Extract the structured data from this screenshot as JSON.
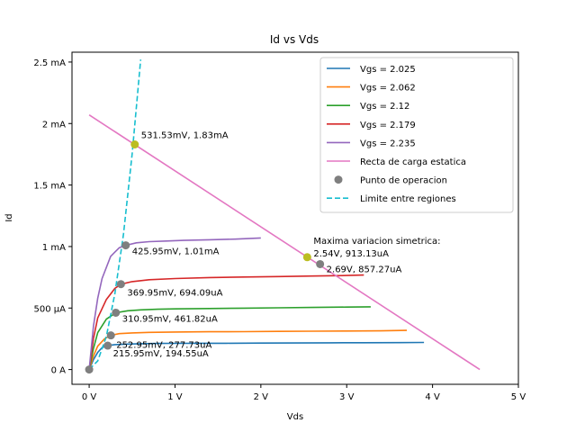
{
  "chart_data": {
    "type": "line",
    "title": "Id vs Vds",
    "xlabel": "Vds",
    "ylabel": "Id",
    "xlim": [
      -0.2,
      5.0
    ],
    "ylim": [
      -0.12,
      2.58
    ],
    "x_ticks": [
      {
        "value": 0,
        "label": "0 V"
      },
      {
        "value": 1,
        "label": "1 V"
      },
      {
        "value": 2,
        "label": "2 V"
      },
      {
        "value": 3,
        "label": "3 V"
      },
      {
        "value": 4,
        "label": "4 V"
      },
      {
        "value": 5,
        "label": "5 V"
      }
    ],
    "y_ticks": [
      {
        "value": 0,
        "label": "0 A"
      },
      {
        "value": 0.5,
        "label": "500 µA"
      },
      {
        "value": 1.0,
        "label": "1 mA"
      },
      {
        "value": 1.5,
        "label": "1.5 mA"
      },
      {
        "value": 2.0,
        "label": "2 mA"
      },
      {
        "value": 2.5,
        "label": "2.5 mA"
      }
    ],
    "grid": false,
    "legend_position": "top-right",
    "series": [
      {
        "name": "Vgs = 2.025",
        "color": "#1f77b4",
        "style": "solid",
        "x": [
          0,
          0.05,
          0.1,
          0.15,
          0.216,
          0.3,
          0.45,
          0.6,
          0.8,
          1.0,
          1.3,
          1.6,
          2.0,
          2.4,
          2.8,
          3.2,
          3.6,
          3.9
        ],
        "y": [
          0,
          0.08,
          0.14,
          0.178,
          0.195,
          0.203,
          0.207,
          0.21,
          0.212,
          0.213,
          0.214,
          0.214,
          0.215,
          0.216,
          0.217,
          0.218,
          0.219,
          0.22
        ]
      },
      {
        "name": "Vgs = 2.062",
        "color": "#ff7f0e",
        "style": "solid",
        "x": [
          0,
          0.05,
          0.1,
          0.18,
          0.253,
          0.35,
          0.5,
          0.7,
          1.0,
          1.4,
          1.8,
          2.2,
          2.6,
          3.0,
          3.4,
          3.7
        ],
        "y": [
          0,
          0.11,
          0.19,
          0.25,
          0.278,
          0.292,
          0.298,
          0.302,
          0.305,
          0.307,
          0.308,
          0.31,
          0.312,
          0.313,
          0.315,
          0.318
        ]
      },
      {
        "name": "Vgs = 2.12",
        "color": "#2ca02c",
        "style": "solid",
        "x": [
          0,
          0.05,
          0.1,
          0.2,
          0.311,
          0.45,
          0.6,
          0.8,
          1.0,
          1.4,
          1.8,
          2.2,
          2.6,
          3.0,
          3.28
        ],
        "y": [
          0,
          0.17,
          0.3,
          0.41,
          0.462,
          0.478,
          0.485,
          0.49,
          0.493,
          0.496,
          0.499,
          0.502,
          0.505,
          0.508,
          0.51
        ]
      },
      {
        "name": "Vgs = 2.179",
        "color": "#d62728",
        "style": "solid",
        "x": [
          0,
          0.05,
          0.1,
          0.2,
          0.3,
          0.37,
          0.5,
          0.7,
          1.0,
          1.4,
          1.8,
          2.2,
          2.6,
          3.0,
          3.2
        ],
        "y": [
          0,
          0.25,
          0.42,
          0.57,
          0.66,
          0.694,
          0.715,
          0.73,
          0.74,
          0.748,
          0.752,
          0.756,
          0.76,
          0.765,
          0.768
        ]
      },
      {
        "name": "Vgs = 2.235",
        "color": "#9467bd",
        "style": "solid",
        "x": [
          0,
          0.05,
          0.1,
          0.15,
          0.25,
          0.35,
          0.426,
          0.55,
          0.7,
          0.9,
          1.1,
          1.4,
          1.7,
          2.0
        ],
        "y": [
          0,
          0.35,
          0.58,
          0.74,
          0.92,
          0.99,
          1.01,
          1.03,
          1.04,
          1.045,
          1.05,
          1.055,
          1.06,
          1.07
        ]
      },
      {
        "name": "Recta de carga estatica",
        "color": "#e377c2",
        "style": "solid",
        "x": [
          0,
          4.55
        ],
        "y": [
          2.07,
          0
        ]
      },
      {
        "name": "Limite entre regiones",
        "color": "#17becf",
        "style": "dashed",
        "x": [
          0,
          0.1,
          0.2,
          0.3,
          0.4,
          0.5,
          0.6
        ],
        "y": [
          0,
          0.07,
          0.27,
          0.62,
          1.1,
          1.75,
          2.52
        ]
      }
    ],
    "operating_points": {
      "name": "Punto de operacion",
      "color": "#7f7f7f",
      "points": [
        {
          "x": 0,
          "y": 0
        },
        {
          "x": 0.216,
          "y": 0.19455,
          "label": "215.95mV, 194.55uA"
        },
        {
          "x": 0.253,
          "y": 0.27773,
          "label": "252.95mV, 277.73uA"
        },
        {
          "x": 0.311,
          "y": 0.46182,
          "label": "310.95mV, 461.82uA"
        },
        {
          "x": 0.37,
          "y": 0.69409,
          "label": "369.95mV, 694.09uA"
        },
        {
          "x": 0.426,
          "y": 1.01,
          "label": "425.95mV, 1.01mA"
        },
        {
          "x": 2.69,
          "y": 0.85727,
          "label": "2.69V, 857.27uA"
        }
      ]
    },
    "highlight_points": {
      "color": "#bcbd22",
      "points": [
        {
          "x": 0.5315,
          "y": 1.83,
          "label": "531.53mV, 1.83mA"
        },
        {
          "x": 2.54,
          "y": 0.91313,
          "label": "2.54V, 913.13uA",
          "heading": "Maxima variacion simetrica"
        }
      ]
    }
  }
}
